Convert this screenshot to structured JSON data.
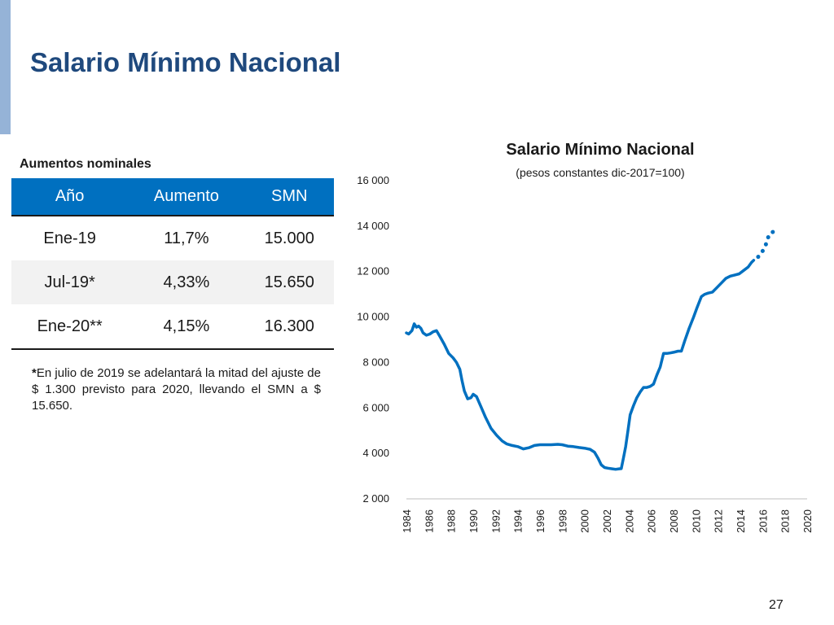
{
  "slide": {
    "title": "Salario Mínimo Nacional",
    "page_number": "27",
    "accent_color": "#95b3d7",
    "title_color": "#1f497d"
  },
  "table": {
    "caption": "Aumentos nominales",
    "header_color": "#0070c0",
    "headers": [
      "Año",
      "Aumento",
      "SMN"
    ],
    "rows": [
      [
        "Ene-19",
        "11,7%",
        "15.000"
      ],
      [
        "Jul-19*",
        "4,33%",
        "15.650"
      ],
      [
        "Ene-20**",
        "4,15%",
        "16.300"
      ]
    ]
  },
  "footnote": {
    "marker": "*",
    "text": "En julio de 2019 se adelantará la mitad del ajuste de $ 1.300 previsto para 2020, llevando el SMN a $ 15.650."
  },
  "chart_data": {
    "type": "line",
    "title": "Salario Mínimo Nacional",
    "subtitle": "(pesos constantes dic-2017=100)",
    "xlabel": "",
    "ylabel": "",
    "xlim": [
      1984,
      2020
    ],
    "ylim": [
      2000,
      16000
    ],
    "yticks": [
      2000,
      4000,
      6000,
      8000,
      10000,
      12000,
      14000,
      16000
    ],
    "ytick_labels": [
      "2 000",
      "4 000",
      "6 000",
      "8 000",
      "10 000",
      "12 000",
      "14 000",
      "16 000"
    ],
    "xticks": [
      1984,
      1986,
      1988,
      1990,
      1992,
      1994,
      1996,
      1998,
      2000,
      2002,
      2004,
      2006,
      2008,
      2010,
      2012,
      2014,
      2016,
      2018,
      2020
    ],
    "xtick_labels": [
      "1984",
      "1986",
      "1988",
      "1990",
      "1992",
      "1994",
      "1996",
      "1998",
      "2000",
      "2002",
      "2004",
      "2006",
      "2008",
      "2010",
      "2012",
      "2014",
      "2016",
      "2018",
      "2020"
    ],
    "grid": false,
    "line_color": "#0070c0",
    "series": [
      {
        "style": "solid",
        "points": [
          [
            1984.0,
            9300
          ],
          [
            1984.2,
            9250
          ],
          [
            1984.5,
            9400
          ],
          [
            1984.7,
            9700
          ],
          [
            1984.9,
            9550
          ],
          [
            1985.1,
            9600
          ],
          [
            1985.3,
            9500
          ],
          [
            1985.5,
            9300
          ],
          [
            1985.8,
            9200
          ],
          [
            1986.1,
            9250
          ],
          [
            1986.4,
            9350
          ],
          [
            1986.7,
            9400
          ],
          [
            1987.0,
            9150
          ],
          [
            1987.4,
            8800
          ],
          [
            1987.8,
            8400
          ],
          [
            1988.2,
            8200
          ],
          [
            1988.5,
            8000
          ],
          [
            1988.8,
            7700
          ],
          [
            1989.0,
            7200
          ],
          [
            1989.2,
            6750
          ],
          [
            1989.5,
            6400
          ],
          [
            1989.8,
            6450
          ],
          [
            1990.0,
            6600
          ],
          [
            1990.3,
            6500
          ],
          [
            1990.7,
            6050
          ],
          [
            1991.1,
            5600
          ],
          [
            1991.6,
            5100
          ],
          [
            1992.1,
            4800
          ],
          [
            1992.6,
            4550
          ],
          [
            1993.0,
            4420
          ],
          [
            1993.5,
            4350
          ],
          [
            1994.0,
            4300
          ],
          [
            1994.5,
            4200
          ],
          [
            1995.0,
            4250
          ],
          [
            1995.5,
            4350
          ],
          [
            1996.0,
            4380
          ],
          [
            1997.0,
            4380
          ],
          [
            1997.6,
            4400
          ],
          [
            1998.0,
            4380
          ],
          [
            1998.5,
            4320
          ],
          [
            1999.0,
            4300
          ],
          [
            1999.5,
            4260
          ],
          [
            2000.0,
            4230
          ],
          [
            2000.5,
            4180
          ],
          [
            2000.9,
            4050
          ],
          [
            2001.2,
            3800
          ],
          [
            2001.5,
            3500
          ],
          [
            2001.8,
            3380
          ],
          [
            2002.1,
            3350
          ],
          [
            2002.5,
            3320
          ],
          [
            2002.8,
            3300
          ],
          [
            2003.1,
            3320
          ],
          [
            2003.3,
            3330
          ],
          [
            2003.5,
            3800
          ],
          [
            2003.7,
            4300
          ],
          [
            2003.9,
            5000
          ],
          [
            2004.1,
            5700
          ],
          [
            2004.4,
            6100
          ],
          [
            2004.7,
            6450
          ],
          [
            2005.0,
            6700
          ],
          [
            2005.3,
            6900
          ],
          [
            2005.6,
            6900
          ],
          [
            2005.9,
            6950
          ],
          [
            2006.2,
            7050
          ],
          [
            2006.5,
            7450
          ],
          [
            2006.8,
            7800
          ],
          [
            2007.1,
            8400
          ],
          [
            2007.4,
            8400
          ],
          [
            2007.7,
            8420
          ],
          [
            2008.0,
            8450
          ],
          [
            2008.4,
            8500
          ],
          [
            2008.7,
            8500
          ],
          [
            2009.0,
            8950
          ],
          [
            2009.4,
            9500
          ],
          [
            2009.8,
            10000
          ],
          [
            2010.1,
            10400
          ],
          [
            2010.5,
            10900
          ],
          [
            2010.8,
            11000
          ],
          [
            2011.1,
            11050
          ],
          [
            2011.5,
            11100
          ],
          [
            2011.9,
            11300
          ],
          [
            2012.3,
            11500
          ],
          [
            2012.7,
            11700
          ],
          [
            2013.1,
            11800
          ],
          [
            2013.5,
            11850
          ],
          [
            2013.9,
            11900
          ],
          [
            2014.3,
            12050
          ],
          [
            2014.7,
            12200
          ],
          [
            2015.0,
            12400
          ],
          [
            2015.2,
            12500
          ]
        ]
      },
      {
        "style": "dotted",
        "points": [
          [
            2015.6,
            12650
          ],
          [
            2015.8,
            12800
          ],
          [
            2016.0,
            12900
          ],
          [
            2016.3,
            13200
          ],
          [
            2016.6,
            13650
          ],
          [
            2017.3,
            13850
          ]
        ]
      }
    ]
  }
}
